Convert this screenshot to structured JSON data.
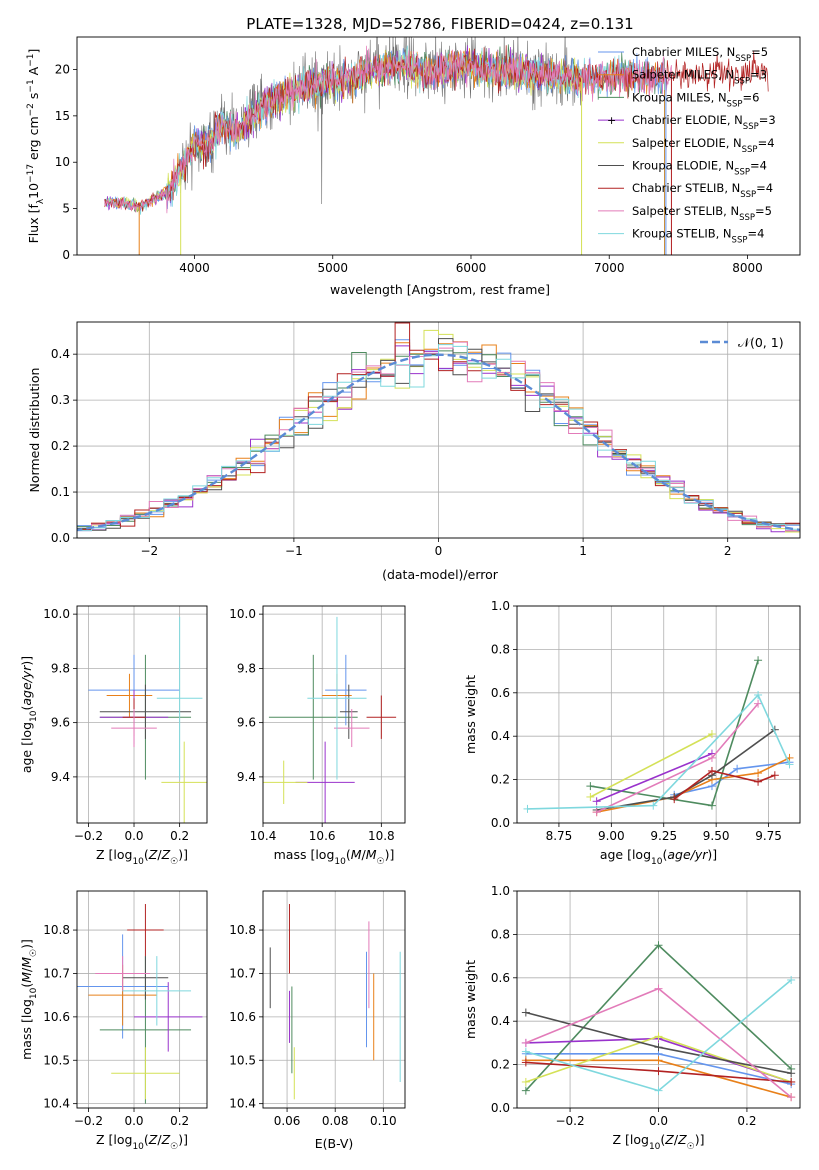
{
  "figure_title": "PLATE=1328, MJD=52786, FIBERID=0424, z=0.131",
  "colors": [
    "#6495ED",
    "#E8801A",
    "#4E8B5F",
    "#9932CC",
    "#D4E157",
    "#4F4F4F",
    "#B22222",
    "#E27BB9",
    "#7FD8DE"
  ],
  "chart_data": [
    {
      "type": "line",
      "panel": "spectrum",
      "title": "PLATE=1328, MJD=52786, FIBERID=0424, z=0.131",
      "xlabel": "wavelength [Angstrom, rest frame]",
      "ylabel": "Flux [f_λ 10^-17 erg cm^-2 s^-1 A^-1]",
      "xlim": [
        3150,
        8380
      ],
      "ylim": [
        0,
        23.5
      ],
      "xticks": [
        4000,
        5000,
        6000,
        7000,
        8000
      ],
      "yticks": [
        0,
        5,
        10,
        15,
        20
      ],
      "grid": false,
      "legend_position": "top-right",
      "data_envelope": {
        "x": [
          3350,
          3500,
          3600,
          3700,
          3800,
          3900,
          4000,
          4100,
          4200,
          4300,
          4500,
          4700,
          4900,
          5100,
          5300,
          5500,
          5700,
          5900,
          6100,
          6300,
          6500,
          6700,
          6900,
          7100,
          7300,
          7400
        ],
        "y": [
          5.7,
          5.6,
          5.2,
          6.0,
          6.8,
          9.0,
          12.0,
          12.0,
          14.0,
          13.5,
          16.0,
          17.5,
          18.5,
          18.8,
          20.0,
          20.5,
          19.5,
          20.5,
          20.0,
          19.8,
          19.5,
          19.2,
          19.0,
          19.5,
          19.0,
          19.5
        ]
      },
      "series": [
        {
          "name": "Chabrier MILES, N_SSP=5",
          "xrange": [
            3350,
            7400
          ]
        },
        {
          "name": "Salpeter MILES, N_SSP=3",
          "xrange": [
            3350,
            7400
          ]
        },
        {
          "name": "Kroupa MILES, N_SSP=6",
          "xrange": [
            3350,
            7400
          ]
        },
        {
          "name": "Chabrier ELODIE, N_SSP=3",
          "xrange": [
            3350,
            6800
          ]
        },
        {
          "name": "Salpeter ELODIE, N_SSP=4",
          "xrange": [
            3350,
            6800
          ]
        },
        {
          "name": "Kroupa ELODIE, N_SSP=4",
          "xrange": [
            3900,
            6800
          ]
        },
        {
          "name": "Chabrier STELIB, N_SSP=4",
          "xrange": [
            3350,
            8150
          ]
        },
        {
          "name": "Salpeter STELIB, N_SSP=5",
          "xrange": [
            3350,
            7450
          ]
        },
        {
          "name": "Kroupa STELIB, N_SSP=4",
          "xrange": [
            3350,
            7400
          ]
        }
      ],
      "legend": [
        {
          "pre": "Chabrier MILES, N",
          "sub": "SSP",
          "post": "=5"
        },
        {
          "pre": "Salpeter MILES, N",
          "sub": "SSP",
          "post": "=3"
        },
        {
          "pre": "Kroupa MILES, N",
          "sub": "SSP",
          "post": "=6"
        },
        {
          "pre": "Chabrier ELODIE, N",
          "sub": "SSP",
          "post": "=3"
        },
        {
          "pre": "Salpeter ELODIE, N",
          "sub": "SSP",
          "post": "=4"
        },
        {
          "pre": "Kroupa ELODIE, N",
          "sub": "SSP",
          "post": "=4"
        },
        {
          "pre": "Chabrier STELIB, N",
          "sub": "SSP",
          "post": "=4"
        },
        {
          "pre": "Salpeter STELIB, N",
          "sub": "SSP",
          "post": "=5"
        },
        {
          "pre": "Kroupa STELIB, N",
          "sub": "SSP",
          "post": "=4"
        }
      ]
    },
    {
      "type": "histogram",
      "panel": "residuals",
      "xlabel": "(data-model)/error",
      "ylabel": "Normed distribution",
      "xlim": [
        -2.5,
        2.5
      ],
      "ylim": [
        0,
        0.47
      ],
      "xticks": [
        -2,
        -1,
        0,
        1,
        2
      ],
      "yticks": [
        0.0,
        0.1,
        0.2,
        0.3,
        0.4
      ],
      "grid": true,
      "legend_position": "top-right",
      "reference_curve": {
        "name": "N(0,1)",
        "label": "𝒩(0, 1)",
        "style": "dashed"
      },
      "bin_width": 0.1,
      "bin_range": [
        -2.5,
        2.5
      ],
      "series_count": 9
    },
    {
      "type": "errorbar",
      "panel": "Z-vs-age",
      "xlabel": "Z [log10(Z/Z☉)]",
      "ylabel": "age  [log10(age/yr)]",
      "xlim": [
        -0.25,
        0.32
      ],
      "ylim": [
        9.23,
        10.03
      ],
      "xticks": [
        -0.2,
        0.0,
        0.2
      ],
      "yticks": [
        9.4,
        9.6,
        9.8,
        10.0
      ],
      "grid": true,
      "points": [
        {
          "x": 0.0,
          "xerr": 0.2,
          "y": 9.72,
          "yerr": 0.13
        },
        {
          "x": -0.02,
          "xerr": 0.1,
          "y": 9.7,
          "yerr": 0.08
        },
        {
          "x": 0.05,
          "xerr": 0.2,
          "y": 9.62,
          "yerr": 0.23
        },
        {
          "x": 0.0,
          "xerr": 0.15,
          "y": 9.62,
          "yerr": 0.1
        },
        {
          "x": 0.22,
          "xerr": 0.1,
          "y": 9.38,
          "yerr": 0.15
        },
        {
          "x": 0.05,
          "xerr": 0.2,
          "y": 9.64,
          "yerr": 0.1
        },
        {
          "x": 0.0,
          "xerr": 0.05,
          "y": 9.62,
          "yerr": 0.07
        },
        {
          "x": 0.0,
          "xerr": 0.1,
          "y": 9.58,
          "yerr": 0.07
        },
        {
          "x": 0.2,
          "xerr": 0.1,
          "y": 9.69,
          "yerr": 0.3
        }
      ]
    },
    {
      "type": "errorbar",
      "panel": "mass-vs-age",
      "xlabel": "mass [log10(M/M☉)]",
      "ylabel": "",
      "xlim": [
        10.4,
        10.88
      ],
      "ylim": [
        9.23,
        10.03
      ],
      "xticks": [
        10.4,
        10.6,
        10.8
      ],
      "yticks": [
        9.4,
        9.6,
        9.8,
        10.0
      ],
      "grid": true,
      "points": [
        {
          "x": 10.68,
          "xerr": 0.07,
          "y": 9.72,
          "yerr": 0.13
        },
        {
          "x": 10.65,
          "xerr": 0.05,
          "y": 9.7,
          "yerr": 0.08
        },
        {
          "x": 10.57,
          "xerr": 0.15,
          "y": 9.62,
          "yerr": 0.23
        },
        {
          "x": 10.61,
          "xerr": 0.1,
          "y": 9.38,
          "yerr": 0.15
        },
        {
          "x": 10.47,
          "xerr": 0.08,
          "y": 9.38,
          "yerr": 0.08
        },
        {
          "x": 10.69,
          "xerr": 0.03,
          "y": 9.64,
          "yerr": 0.1
        },
        {
          "x": 10.8,
          "xerr": 0.05,
          "y": 9.62,
          "yerr": 0.08
        },
        {
          "x": 10.7,
          "xerr": 0.06,
          "y": 9.58,
          "yerr": 0.07
        },
        {
          "x": 10.65,
          "xerr": 0.1,
          "y": 9.69,
          "yerr": 0.3
        }
      ]
    },
    {
      "type": "line",
      "panel": "age-vs-mass-weight",
      "xlabel": "age  [log10(age/yr)]",
      "ylabel": "mass weight",
      "xlim": [
        8.55,
        9.9
      ],
      "ylim": [
        0,
        1
      ],
      "xticks": [
        8.75,
        9.0,
        9.25,
        9.5,
        9.75
      ],
      "yticks": [
        0.0,
        0.2,
        0.4,
        0.6,
        0.8,
        1.0
      ],
      "grid": true,
      "series": [
        {
          "x": [
            9.3,
            9.48,
            9.6,
            9.85
          ],
          "y": [
            0.13,
            0.17,
            0.25,
            0.28
          ]
        },
        {
          "x": [
            8.93,
            9.3,
            9.48,
            9.7,
            9.85
          ],
          "y": [
            0.05,
            0.12,
            0.2,
            0.23,
            0.3
          ]
        },
        {
          "x": [
            8.9,
            9.48,
            9.7
          ],
          "y": [
            0.17,
            0.08,
            0.75
          ]
        },
        {
          "x": [
            8.93,
            9.48
          ],
          "y": [
            0.1,
            0.32
          ]
        },
        {
          "x": [
            8.9,
            9.48
          ],
          "y": [
            0.12,
            0.41
          ]
        },
        {
          "x": [
            8.93,
            9.3,
            9.48,
            9.78
          ],
          "y": [
            0.06,
            0.12,
            0.22,
            0.43
          ]
        },
        {
          "x": [
            9.3,
            9.48,
            9.7,
            9.78
          ],
          "y": [
            0.11,
            0.24,
            0.19,
            0.22
          ]
        },
        {
          "x": [
            8.93,
            9.48,
            9.7
          ],
          "y": [
            0.05,
            0.3,
            0.55
          ]
        },
        {
          "x": [
            8.6,
            9.2,
            9.7,
            9.85
          ],
          "y": [
            0.065,
            0.08,
            0.59,
            0.27
          ]
        }
      ]
    },
    {
      "type": "errorbar",
      "panel": "Z-vs-mass",
      "xlabel": "Z [log10(Z/Z☉)]",
      "ylabel": "mass [log10(M/M☉)]",
      "xlim": [
        -0.25,
        0.32
      ],
      "ylim": [
        10.39,
        10.89
      ],
      "xticks": [
        -0.2,
        0.0,
        0.2
      ],
      "yticks": [
        10.4,
        10.5,
        10.6,
        10.7,
        10.8
      ],
      "grid": true,
      "points": [
        {
          "x": -0.05,
          "xerr": 0.2,
          "y": 10.67,
          "yerr": 0.12
        },
        {
          "x": -0.05,
          "xerr": 0.15,
          "y": 10.65,
          "yerr": 0.07
        },
        {
          "x": 0.05,
          "xerr": 0.2,
          "y": 10.57,
          "yerr": 0.17
        },
        {
          "x": 0.15,
          "xerr": 0.15,
          "y": 10.6,
          "yerr": 0.08
        },
        {
          "x": 0.05,
          "xerr": 0.15,
          "y": 10.47,
          "yerr": 0.06
        },
        {
          "x": 0.05,
          "xerr": 0.1,
          "y": 10.69,
          "yerr": 0.05
        },
        {
          "x": 0.05,
          "xerr": 0.08,
          "y": 10.8,
          "yerr": 0.06
        },
        {
          "x": -0.05,
          "xerr": 0.12,
          "y": 10.7,
          "yerr": 0.04
        },
        {
          "x": 0.1,
          "xerr": 0.15,
          "y": 10.66,
          "yerr": 0.08
        }
      ]
    },
    {
      "type": "errorbar",
      "panel": "EBV-vs-mass",
      "xlabel": "E(B-V)",
      "ylabel": "",
      "xlim": [
        0.05,
        0.109
      ],
      "ylim": [
        10.39,
        10.89
      ],
      "xticks": [
        0.06,
        0.08,
        0.1
      ],
      "yticks": [
        10.4,
        10.5,
        10.6,
        10.7,
        10.8
      ],
      "grid": true,
      "points": [
        {
          "x": 0.093,
          "y": 10.64,
          "yerr": 0.11
        },
        {
          "x": 0.096,
          "y": 10.6,
          "yerr": 0.1
        },
        {
          "x": 0.062,
          "y": 10.57,
          "yerr": 0.1
        },
        {
          "x": 0.061,
          "y": 10.6,
          "yerr": 0.06
        },
        {
          "x": 0.063,
          "y": 10.47,
          "yerr": 0.06
        },
        {
          "x": 0.053,
          "y": 10.69,
          "yerr": 0.07
        },
        {
          "x": 0.061,
          "y": 10.78,
          "yerr": 0.08
        },
        {
          "x": 0.094,
          "y": 10.72,
          "yerr": 0.1
        },
        {
          "x": 0.107,
          "y": 10.6,
          "yerr": 0.15
        }
      ]
    },
    {
      "type": "line",
      "panel": "Z-vs-mass-weight",
      "xlabel": "Z [log10(Z/Z☉)]",
      "ylabel": "mass weight",
      "xlim": [
        -0.32,
        0.32
      ],
      "ylim": [
        0,
        1
      ],
      "xticks": [
        -0.2,
        0.0,
        0.2
      ],
      "yticks": [
        0.0,
        0.2,
        0.4,
        0.6,
        0.8,
        1.0
      ],
      "grid": true,
      "series": [
        {
          "x": [
            -0.3,
            0.0,
            0.3
          ],
          "y": [
            0.25,
            0.25,
            0.11
          ]
        },
        {
          "x": [
            -0.3,
            0.0,
            0.3
          ],
          "y": [
            0.22,
            0.22,
            0.05
          ]
        },
        {
          "x": [
            -0.3,
            0.0,
            0.3
          ],
          "y": [
            0.08,
            0.75,
            0.18
          ]
        },
        {
          "x": [
            -0.3,
            0.0,
            0.3
          ],
          "y": [
            0.3,
            0.32,
            0.12
          ]
        },
        {
          "x": [
            -0.3,
            0.0,
            0.3
          ],
          "y": [
            0.12,
            0.33,
            0.12
          ]
        },
        {
          "x": [
            -0.3,
            0.0,
            0.3
          ],
          "y": [
            0.44,
            0.28,
            0.16
          ]
        },
        {
          "x": [
            -0.3,
            0.0,
            0.3
          ],
          "y": [
            0.21,
            0.17,
            0.12
          ]
        },
        {
          "x": [
            -0.3,
            0.0,
            0.3
          ],
          "y": [
            0.3,
            0.55,
            0.05
          ]
        },
        {
          "x": [
            -0.3,
            0.0,
            0.3
          ],
          "y": [
            0.26,
            0.08,
            0.59
          ]
        }
      ]
    }
  ]
}
